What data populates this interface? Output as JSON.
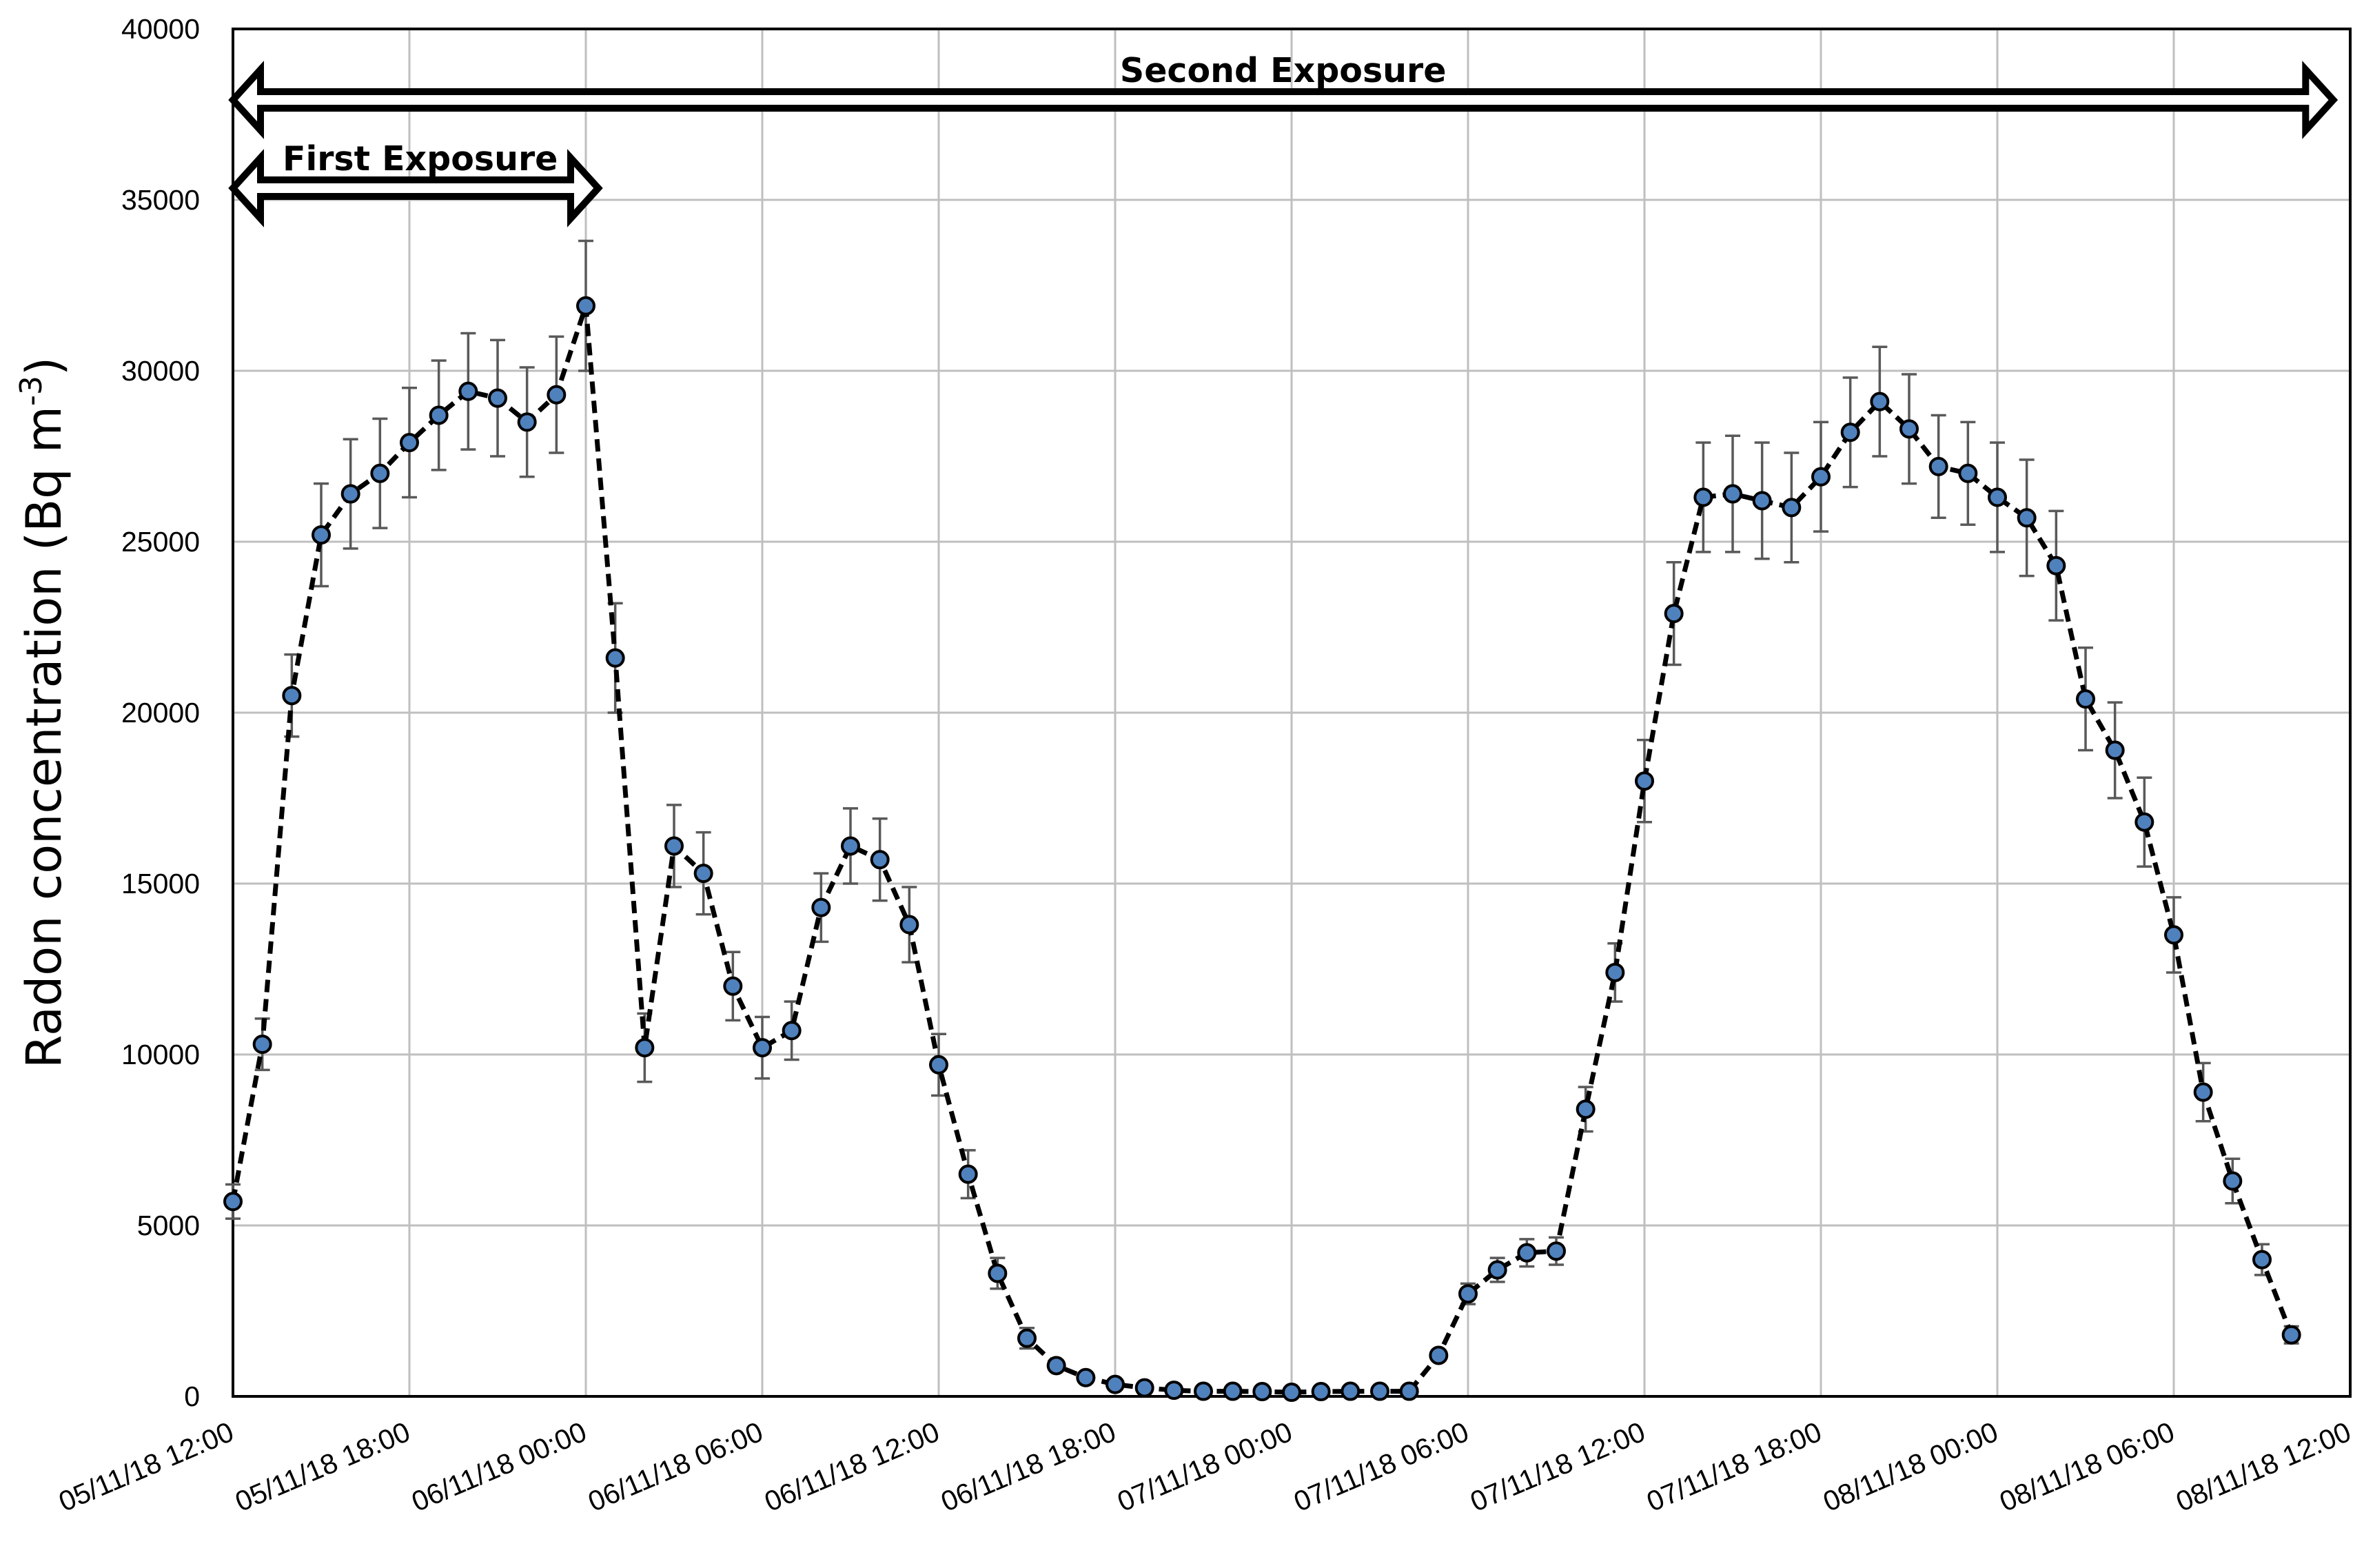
{
  "chart_data": {
    "type": "line",
    "title": "",
    "xlabel": "",
    "ylabel_main": "Radon concentration (Bq m",
    "ylabel_sup": "-3",
    "ylabel_close": ")",
    "ylim": [
      0,
      40000
    ],
    "y_ticks": [
      "0",
      "5000",
      "10000",
      "15000",
      "20000",
      "25000",
      "30000",
      "35000",
      "40000"
    ],
    "x_ticks": [
      "05/11/18 12:00",
      "05/11/18 18:00",
      "06/11/18 00:00",
      "06/11/18 06:00",
      "06/11/18 12:00",
      "06/11/18 18:00",
      "07/11/18 00:00",
      "07/11/18 06:00",
      "07/11/18 12:00",
      "07/11/18 18:00",
      "08/11/18 00:00",
      "08/11/18 06:00",
      "08/11/18 12:00"
    ],
    "x_start": "05/11/18 12:00",
    "x_step_hours": 1,
    "grid": true,
    "marker_color": "#4f81bd",
    "line_style": "dashed",
    "series": [
      {
        "values": [
          5700,
          10300,
          20500,
          25200,
          26400,
          27000,
          27900,
          28700,
          29400,
          29200,
          28500,
          29300,
          31900,
          21600,
          10200,
          16100,
          15300,
          12000,
          10200,
          10700,
          14300,
          16100,
          15700,
          13800,
          9700,
          6500,
          3600,
          1700,
          900,
          550,
          350,
          250,
          180,
          150,
          150,
          140,
          120,
          140,
          150,
          150,
          150,
          1200,
          3000,
          3700,
          4200,
          4250,
          8400,
          12400,
          18000,
          22900,
          26300,
          26400,
          26200,
          26000,
          26900,
          28200,
          29100,
          28300,
          27200,
          27000,
          26300,
          25700,
          24300,
          20400,
          18900,
          16800,
          13500,
          8900,
          6300,
          4000,
          1800
        ],
        "errors": [
          500,
          750,
          1200,
          1500,
          1600,
          1600,
          1600,
          1600,
          1700,
          1700,
          1600,
          1700,
          1900,
          1600,
          1000,
          1200,
          1200,
          1000,
          900,
          850,
          1000,
          1100,
          1200,
          1100,
          900,
          700,
          450,
          300,
          150,
          100,
          80,
          60,
          50,
          50,
          50,
          50,
          50,
          50,
          50,
          50,
          50,
          150,
          300,
          350,
          400,
          400,
          650,
          850,
          1200,
          1500,
          1600,
          1700,
          1700,
          1600,
          1600,
          1600,
          1600,
          1600,
          1500,
          1500,
          1600,
          1700,
          1600,
          1500,
          1400,
          1300,
          1100,
          850,
          650,
          450,
          250
        ]
      }
    ],
    "annotations": [
      {
        "text": "Second Exposure",
        "from": "05/11/18 12:00",
        "to": "08/11/18 11:00"
      },
      {
        "text": "First Exposure",
        "from": "05/11/18 12:00",
        "to": "06/11/18 00:00"
      }
    ]
  }
}
